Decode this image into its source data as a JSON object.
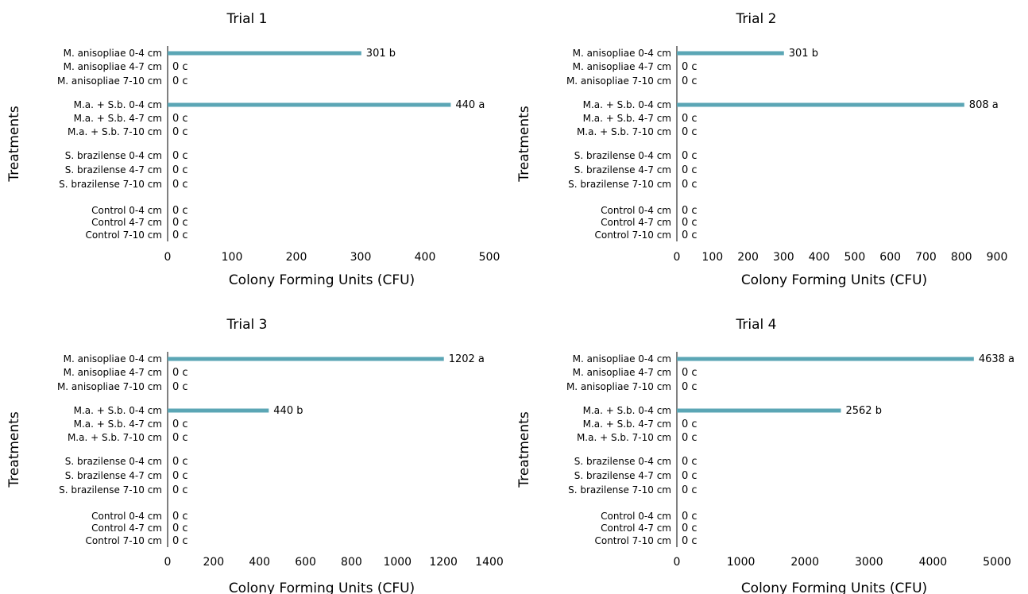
{
  "colors": {
    "bar": "#5ba6b5",
    "axis": "#000000",
    "text": "#000000"
  },
  "categories": [
    "M. anisopliae 0-4 cm",
    "M. anisopliae 4-7 cm",
    "M. anisopliae 7-10 cm",
    "M.a. + S.b. 0-4 cm",
    "M.a. + S.b. 4-7 cm",
    "M.a. + S.b. 7-10 cm",
    "S. brazilense 0-4 cm",
    "S. brazilense 4-7 cm",
    "S. brazilense 7-10 cm",
    "Control 0-4 cm",
    "Control 4-7 cm",
    "Control 7-10 cm"
  ],
  "chart_data": [
    {
      "type": "bar",
      "orientation": "horizontal",
      "title": "Trial 1",
      "xlabel": "Colony Forming Units (CFU)",
      "ylabel": "Treatments",
      "xlim": [
        0,
        500
      ],
      "xticks": [
        "0",
        "100",
        "200",
        "300",
        "400",
        "500"
      ],
      "values": [
        301,
        0,
        0,
        440,
        0,
        0,
        0,
        0,
        0,
        0,
        0,
        0
      ],
      "labels": [
        "301 b",
        "0 c",
        "0 c",
        "440 a",
        "0 c",
        "0 c",
        "0 c",
        "0 c",
        "0 c",
        "0 c",
        "0 c",
        "0 c"
      ]
    },
    {
      "type": "bar",
      "orientation": "horizontal",
      "title": "Trial 2",
      "xlabel": "Colony Forming Units (CFU)",
      "ylabel": "Treatments",
      "xlim": [
        0,
        900
      ],
      "xticks": [
        "0",
        "100",
        "200",
        "300",
        "400",
        "500",
        "600",
        "700",
        "800",
        "900"
      ],
      "values": [
        301,
        0,
        0,
        808,
        0,
        0,
        0,
        0,
        0,
        0,
        0,
        0
      ],
      "labels": [
        "301 b",
        "0 c",
        "0 c",
        "808 a",
        "0 c",
        "0 c",
        "0 c",
        "0 c",
        "0 c",
        "0 c",
        "0 c",
        "0 c"
      ]
    },
    {
      "type": "bar",
      "orientation": "horizontal",
      "title": "Trial 3",
      "xlabel": "Colony Forming Units (CFU)",
      "ylabel": "Treatments",
      "xlim": [
        0,
        1400
      ],
      "xticks": [
        "0",
        "200",
        "400",
        "600",
        "800",
        "1000",
        "1200",
        "1400"
      ],
      "values": [
        1202,
        0,
        0,
        440,
        0,
        0,
        0,
        0,
        0,
        0,
        0,
        0
      ],
      "labels": [
        "1202 a",
        "0 c",
        "0 c",
        "440 b",
        "0 c",
        "0 c",
        "0 c",
        "0 c",
        "0 c",
        "0 c",
        "0 c",
        "0 c"
      ]
    },
    {
      "type": "bar",
      "orientation": "horizontal",
      "title": "Trial 4",
      "xlabel": "Colony Forming Units (CFU)",
      "ylabel": "Treatments",
      "xlim": [
        0,
        5000
      ],
      "xticks": [
        "0",
        "1000",
        "2000",
        "3000",
        "4000",
        "5000"
      ],
      "values": [
        4638,
        0,
        0,
        2562,
        0,
        0,
        0,
        0,
        0,
        0,
        0,
        0
      ],
      "labels": [
        "4638 a",
        "0 c",
        "0 c",
        "2562 b",
        "0 c",
        "0 c",
        "0 c",
        "0 c",
        "0 c",
        "0 c",
        "0 c",
        "0 c"
      ]
    }
  ]
}
